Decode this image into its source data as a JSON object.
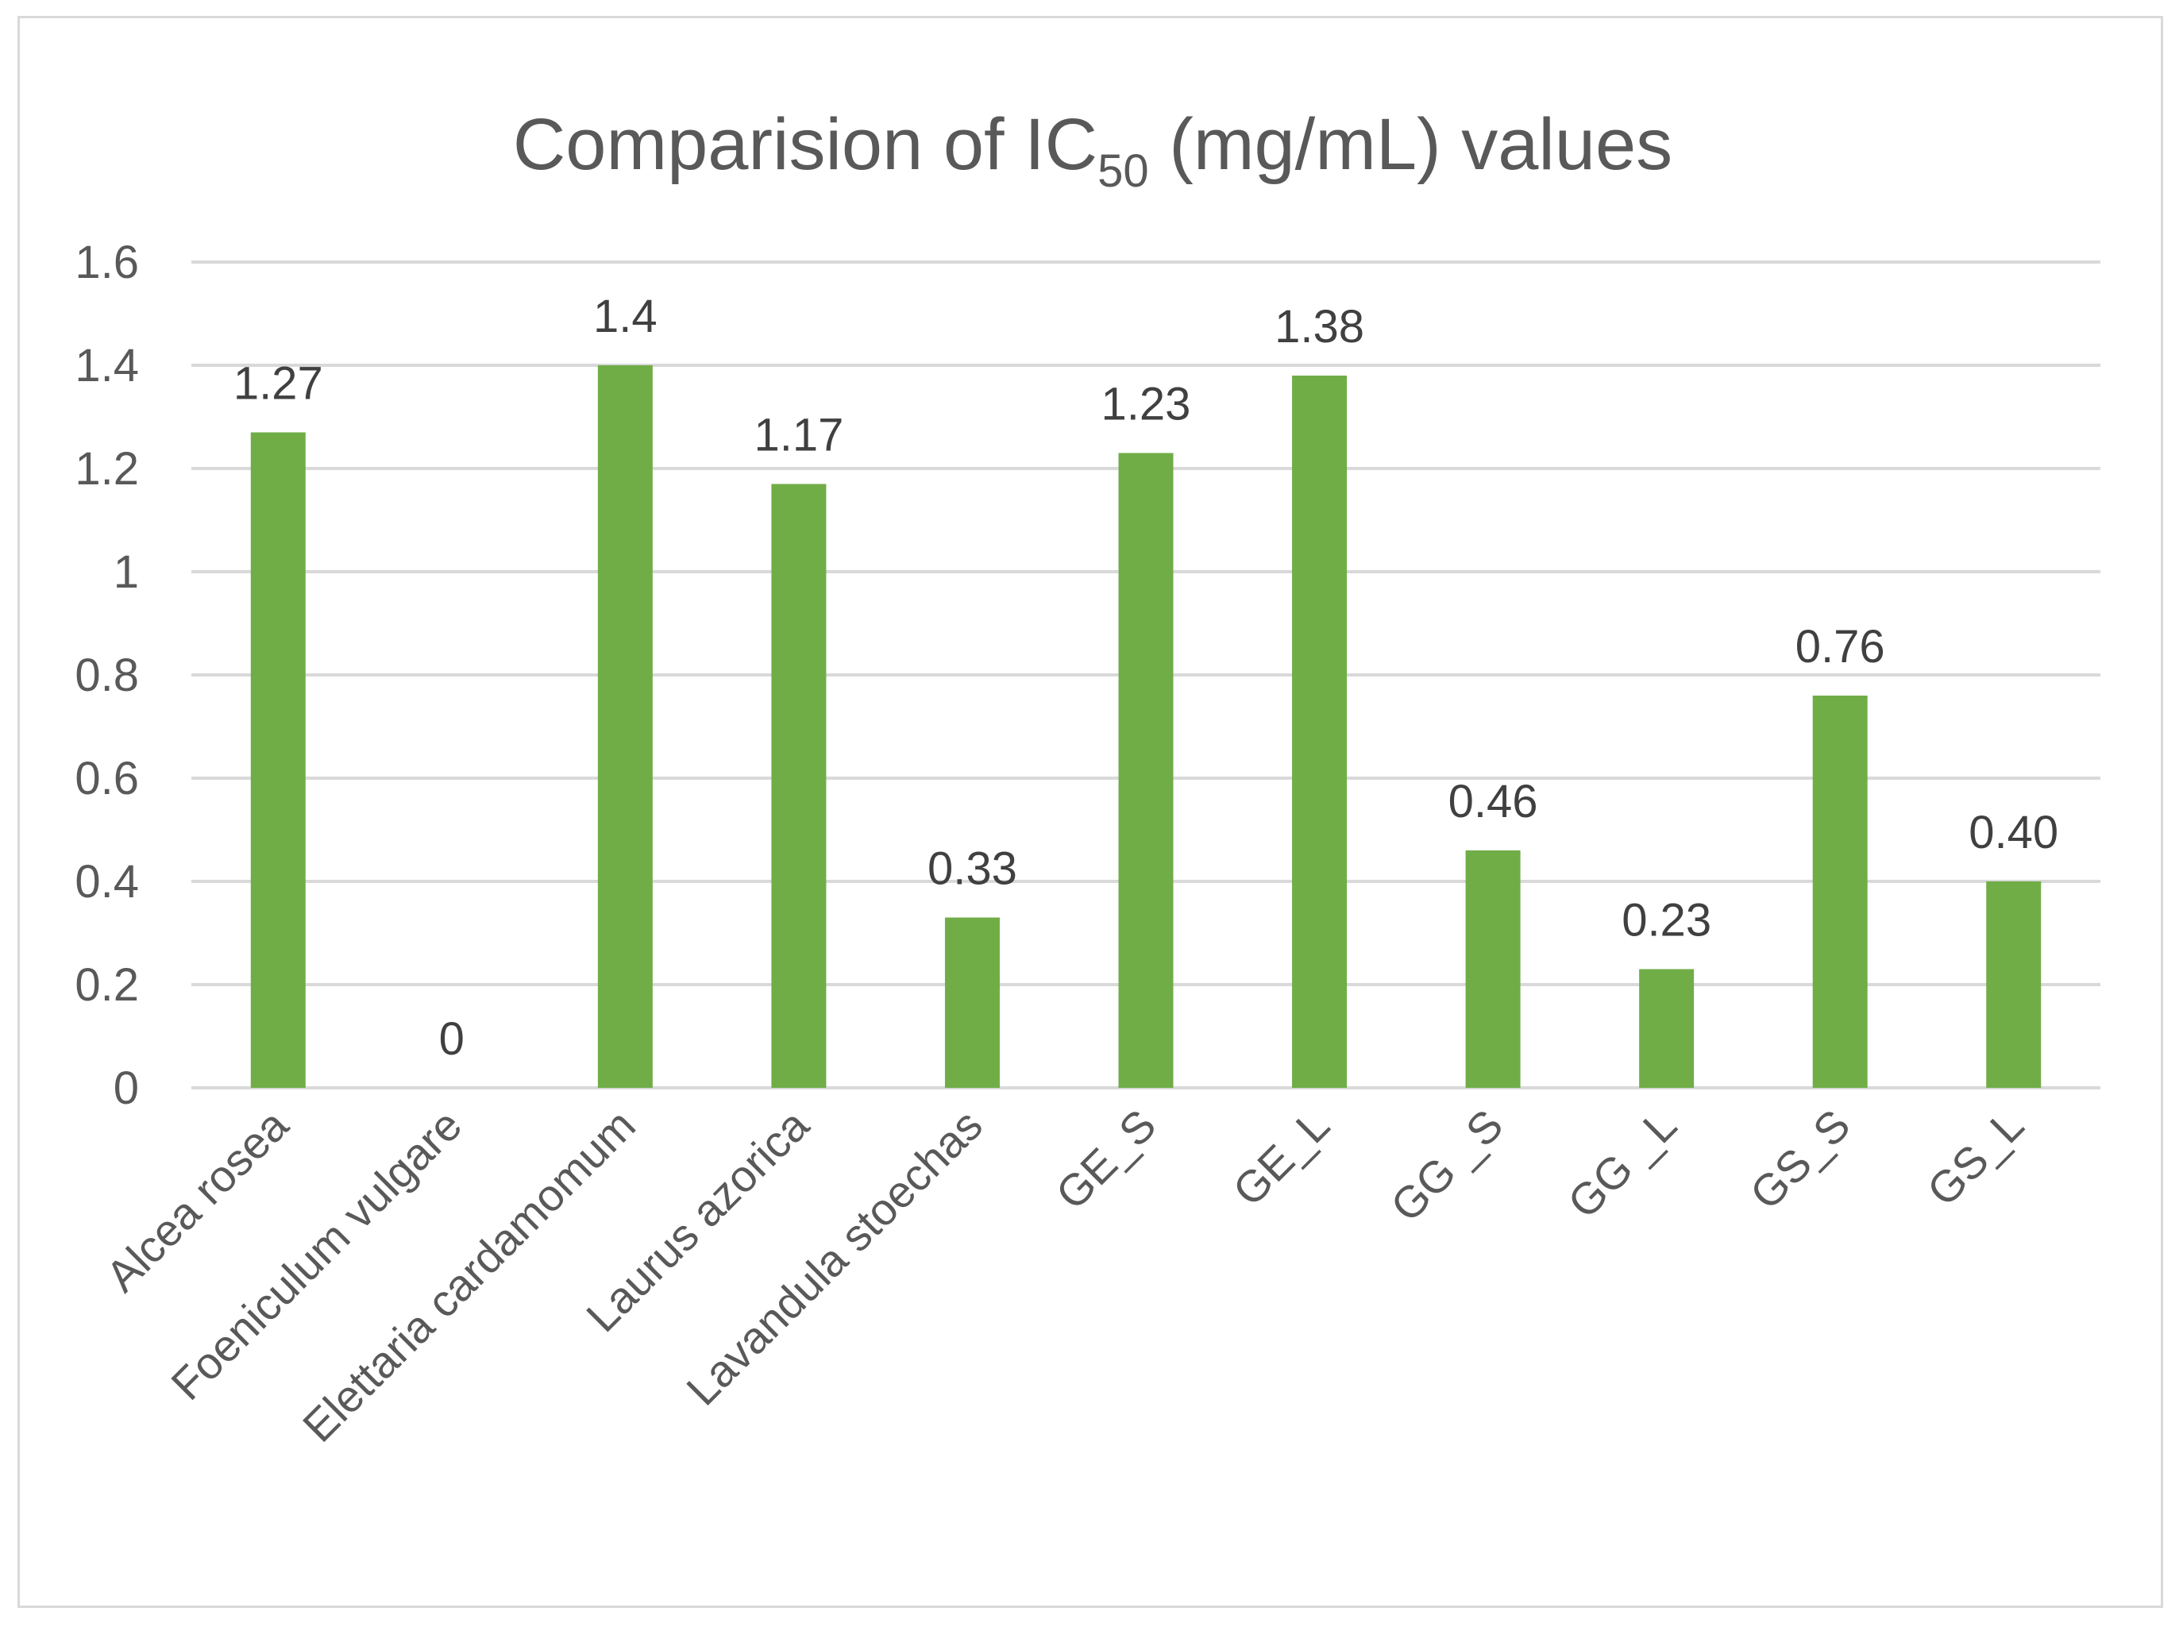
{
  "chart_data": {
    "type": "bar",
    "title": {
      "main": "Comparision of IC",
      "subscript": "50",
      "suffix": " (mg/mL) values"
    },
    "categories": [
      "Alcea rosea",
      "Foeniculum vulgare",
      "Elettaria cardamomum",
      "Laurus azorica",
      "Lavandula stoechas",
      "GE_S",
      "GE_L",
      "GG _S",
      "GG _L",
      "GS_S",
      "GS_L"
    ],
    "values": [
      1.27,
      0,
      1.4,
      1.17,
      0.33,
      1.23,
      1.38,
      0.46,
      0.23,
      0.76,
      0.4
    ],
    "data_labels": [
      "1.27",
      "0",
      "1.4",
      "1.17",
      "0.33",
      "1.23",
      "1.38",
      "0.46",
      "0.23",
      "0.76",
      "0.40"
    ],
    "y_ticks": [
      "0",
      "0.2",
      "0.4",
      "0.6",
      "0.8",
      "1",
      "1.2",
      "1.4",
      "1.6"
    ],
    "ylim": [
      0,
      1.6
    ],
    "y_step": 0.2,
    "xlabel": "",
    "ylabel": "",
    "grid": true,
    "legend": "none",
    "colors": {
      "bar": "#70ad47",
      "grid": "#d9d9d9",
      "axis_text": "#595959",
      "label_text": "#404040"
    }
  }
}
